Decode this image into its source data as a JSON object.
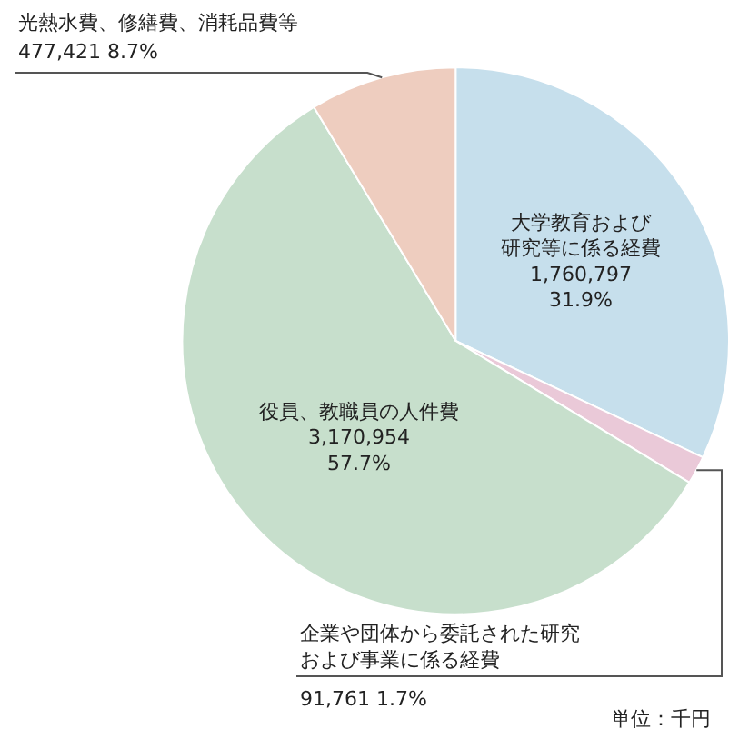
{
  "chart_data": {
    "type": "pie",
    "categories": [
      "大学教育および研究等に係る経費",
      "企業や団体から委託された研究および事業に係る経費",
      "役員、教職員の人件費",
      "光熱水費、修繕費、消耗品費等"
    ],
    "values": [
      1760797,
      91761,
      3170954,
      477421
    ],
    "value_labels": [
      "1,760,797\n31.9%",
      "91,761 1.7%",
      "3,170,954\n57.7%",
      "477,421 8.7%"
    ],
    "colors": [
      "#c6dfec",
      "#eac9d8",
      "#c7dfcc",
      "#eecdbf"
    ],
    "annotations": [
      "単位：千円"
    ],
    "legend": false
  }
}
